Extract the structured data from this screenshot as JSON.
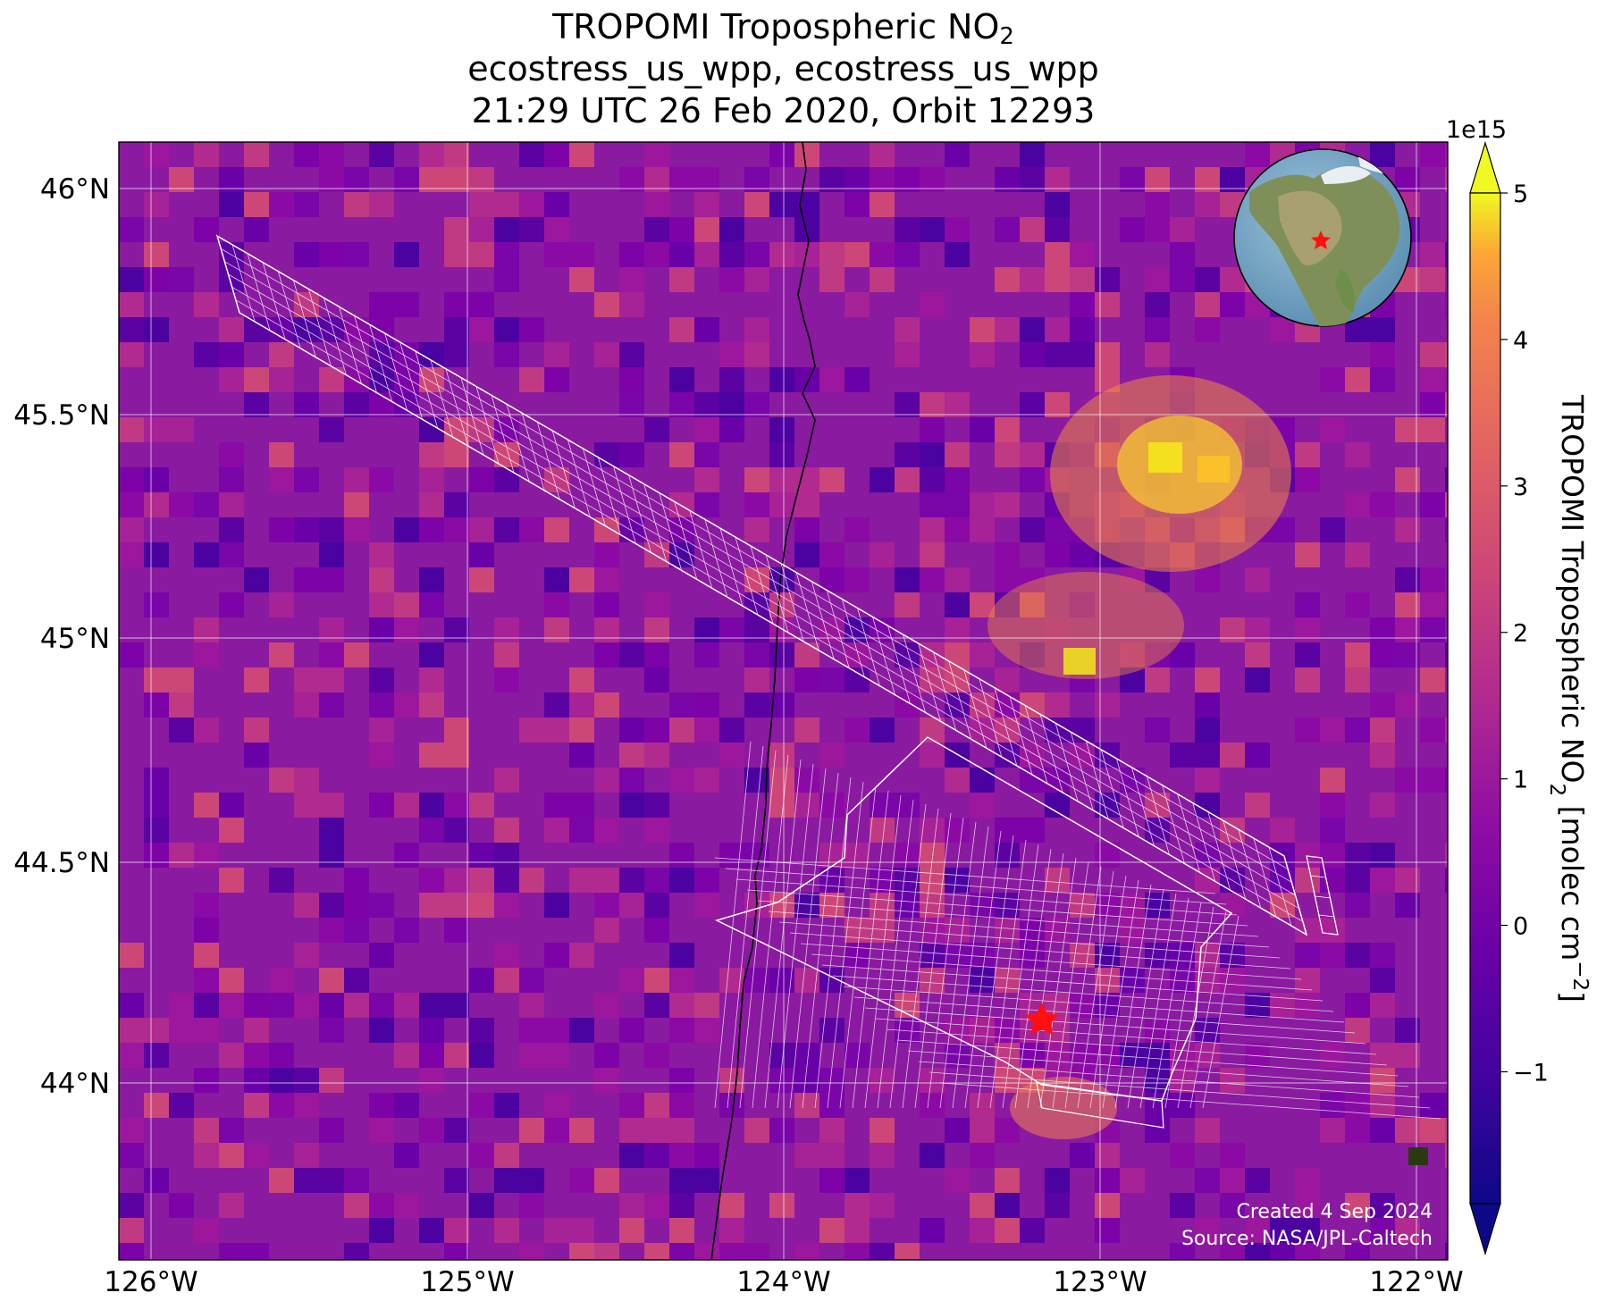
{
  "title": {
    "line1_main": "TROPOMI Tropospheric NO",
    "line1_sub": "2",
    "line2": "ecostress_us_wpp, ecostress_us_wpp",
    "line3": "21:29 UTC 26 Feb 2020, Orbit 12293"
  },
  "map": {
    "lon_range": [
      -126.1,
      -121.9
    ],
    "lat_range": [
      43.6,
      46.1
    ],
    "lon_ticks": [
      -126,
      -125,
      -124,
      -123,
      -122
    ],
    "lon_tick_labels": [
      "126°W",
      "125°W",
      "124°W",
      "123°W",
      "122°W"
    ],
    "lat_ticks": [
      46,
      45.5,
      45,
      44.5,
      44
    ],
    "lat_tick_labels": [
      "46°N",
      "45.5°N",
      "45°N",
      "44.5°N",
      "44°N"
    ],
    "gridlines": true,
    "colormap": "plasma",
    "background_color": "#8a1aa0",
    "target_marker": {
      "type": "star",
      "color": "#ff0000",
      "lon": -123.2,
      "lat": 44.13
    },
    "coastline_color": "#000000"
  },
  "colorbar": {
    "label_main": "TROPOMI Tropospheric NO",
    "label_sub": "2",
    "label_units": " [molec cm",
    "label_sup": "−2",
    "label_close": "]",
    "exponent_label": "1e15",
    "range": [
      -1.9,
      5.0
    ],
    "extend": "both",
    "ticks": [
      5,
      4,
      3,
      2,
      1,
      0,
      -1
    ],
    "tick_labels": [
      "5",
      "4",
      "3",
      "2",
      "1",
      "0",
      "−1"
    ]
  },
  "inset_globe": {
    "marker": "red-star",
    "region": "North America"
  },
  "credits": {
    "line1": "Created 4 Sep 2024",
    "line2": "Source: NASA/JPL-Caltech"
  }
}
